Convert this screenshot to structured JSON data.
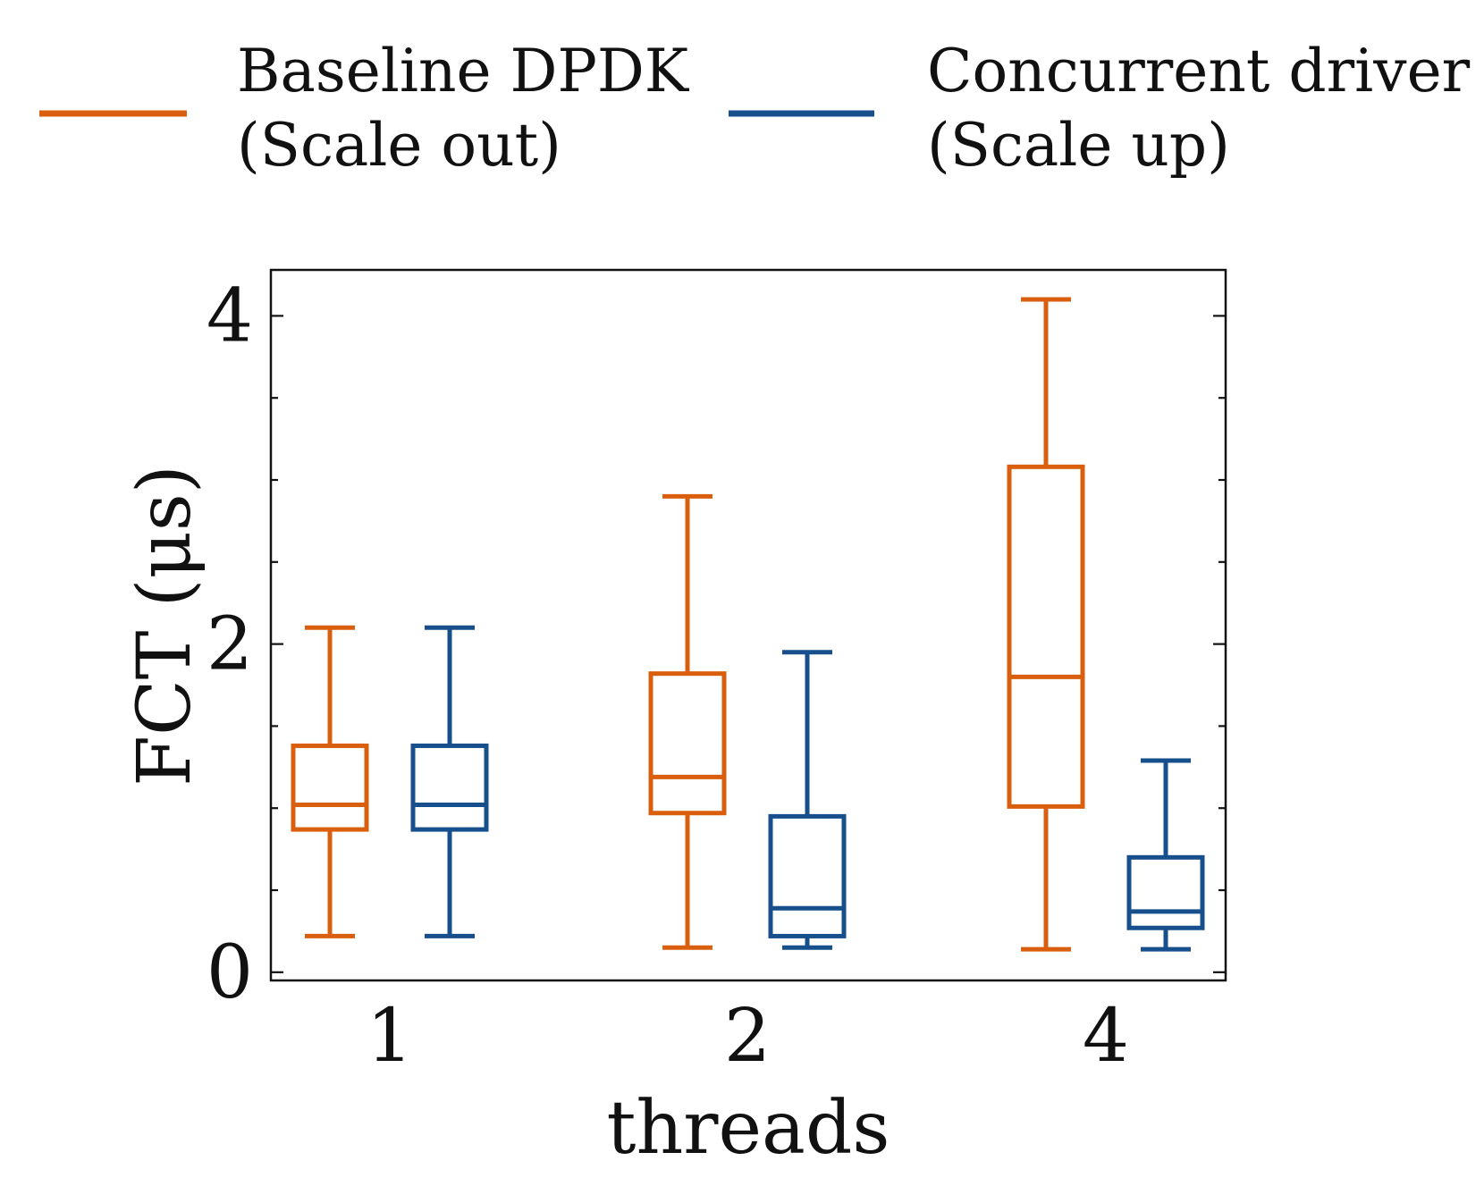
{
  "chart_data": {
    "type": "boxplot",
    "xlabel": "threads",
    "ylabel": "FCT (μs)",
    "ylim": [
      -0.05,
      4.28
    ],
    "yticks": [
      "0",
      "2",
      "4"
    ],
    "categories": [
      "1",
      "2",
      "4"
    ],
    "legend": {
      "placement": "top",
      "entries": [
        {
          "line1": "Baseline DPDK",
          "line2": "(Scale out)"
        },
        {
          "line1": "Concurrent driver",
          "line2": "(Scale up)"
        }
      ]
    },
    "series": [
      {
        "name": "Baseline DPDK (Scale out)",
        "color": "#d95f0e",
        "boxes": [
          {
            "category": "1",
            "whisker_low": 0.22,
            "q1": 0.87,
            "median": 1.02,
            "q3": 1.38,
            "whisker_high": 2.1
          },
          {
            "category": "2",
            "whisker_low": 0.15,
            "q1": 0.97,
            "median": 1.19,
            "q3": 1.82,
            "whisker_high": 2.9
          },
          {
            "category": "4",
            "whisker_low": 0.14,
            "q1": 1.01,
            "median": 1.8,
            "q3": 3.08,
            "whisker_high": 4.1
          }
        ]
      },
      {
        "name": "Concurrent driver (Scale up)",
        "color": "#174f8c",
        "boxes": [
          {
            "category": "1",
            "whisker_low": 0.22,
            "q1": 0.87,
            "median": 1.02,
            "q3": 1.38,
            "whisker_high": 2.1
          },
          {
            "category": "2",
            "whisker_low": 0.15,
            "q1": 0.22,
            "median": 0.39,
            "q3": 0.95,
            "whisker_high": 1.95
          },
          {
            "category": "4",
            "whisker_low": 0.14,
            "q1": 0.27,
            "median": 0.37,
            "q3": 0.7,
            "whisker_high": 1.29
          }
        ]
      }
    ]
  }
}
